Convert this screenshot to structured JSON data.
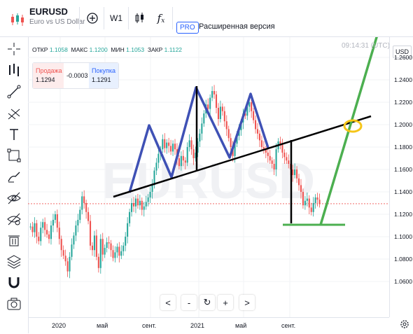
{
  "header": {
    "symbol": "EURUSD",
    "description": "Euro vs US Dollar",
    "interval": "W1",
    "fx_label": "f",
    "fx_sub": "x",
    "pro_badge": "PRO",
    "extended_label": "Расширенная версия"
  },
  "legend": {
    "open_label": "ОТКР",
    "open": "1.1058",
    "high_label": "МАКС",
    "high": "1.1200",
    "low_label": "МИН",
    "low": "1.1053",
    "close_label": "ЗАКР",
    "close": "1.1122"
  },
  "clock": "09:14:31 (UTC)",
  "trade": {
    "sell_label": "Продажа",
    "sell_price": "1.1294",
    "spread": "-0.0003",
    "buy_label": "Покупка",
    "buy_price": "1.1291"
  },
  "price_scale": {
    "currency": "USD",
    "labels": [
      "1.2600",
      "1.2400",
      "1.2200",
      "1.2000",
      "1.1800",
      "1.1600",
      "1.1400",
      "1.1200",
      "1.1000",
      "1.0800",
      "1.0600"
    ]
  },
  "time_scale": {
    "labels": [
      "2020",
      "май",
      "сент.",
      "2021",
      "май",
      "сент."
    ]
  },
  "zoom": {
    "left": "<",
    "minus": "-",
    "reset": "↻",
    "plus": "+",
    "right": ">"
  },
  "watermark": "EURUSD",
  "colors": {
    "up": "#26a69a",
    "down": "#ef5350",
    "pattern": "#3f51b5",
    "trend": "#4caf50",
    "neckline": "#000000",
    "highlight": "#f5c518",
    "current_price": "#ef5350"
  },
  "chart_data": {
    "type": "candlestick",
    "series": [
      {
        "values": [
          1.109,
          1.104,
          1.112,
          1.1,
          1.096,
          1.108,
          1.113,
          1.106,
          1.102,
          1.098,
          1.11,
          1.115,
          1.12,
          1.108,
          1.098,
          1.088,
          1.083,
          1.078,
          1.069,
          1.082,
          1.093,
          1.101,
          1.11,
          1.115,
          1.124,
          1.136,
          1.13,
          1.122,
          1.114,
          1.092,
          1.088,
          1.101,
          1.082,
          1.072,
          1.098,
          1.084,
          1.09,
          1.095,
          1.094,
          1.088,
          1.081,
          1.086,
          1.091,
          1.083,
          1.087,
          1.092,
          1.1,
          1.112,
          1.122,
          1.13,
          1.127,
          1.134,
          1.128,
          1.132,
          1.124,
          1.127,
          1.131,
          1.135,
          1.14,
          1.146,
          1.159,
          1.166,
          1.174,
          1.178,
          1.187,
          1.179,
          1.184,
          1.181,
          1.176,
          1.183,
          1.178,
          1.17,
          1.163,
          1.172,
          1.168,
          1.166,
          1.18,
          1.186,
          1.178,
          1.17,
          1.175,
          1.185,
          1.192,
          1.201,
          1.21,
          1.218,
          1.214,
          1.224,
          1.23,
          1.227,
          1.215,
          1.205,
          1.216,
          1.212,
          1.203,
          1.196,
          1.188,
          1.18,
          1.172,
          1.183,
          1.19,
          1.195,
          1.202,
          1.21,
          1.208,
          1.216,
          1.22,
          1.212,
          1.204,
          1.196,
          1.192,
          1.186,
          1.18,
          1.178,
          1.175,
          1.172,
          1.168,
          1.165,
          1.16,
          1.178,
          1.185,
          1.182,
          1.175,
          1.171,
          1.168,
          1.165,
          1.16,
          1.155,
          1.16,
          1.152,
          1.146,
          1.14,
          1.128,
          1.132,
          1.134,
          1.126,
          1.122,
          1.13,
          1.135,
          1.133,
          1.129
        ]
      }
    ],
    "x_range": [
      "2019-08",
      "2022-02"
    ],
    "ylim": [
      1.05,
      1.27
    ]
  }
}
